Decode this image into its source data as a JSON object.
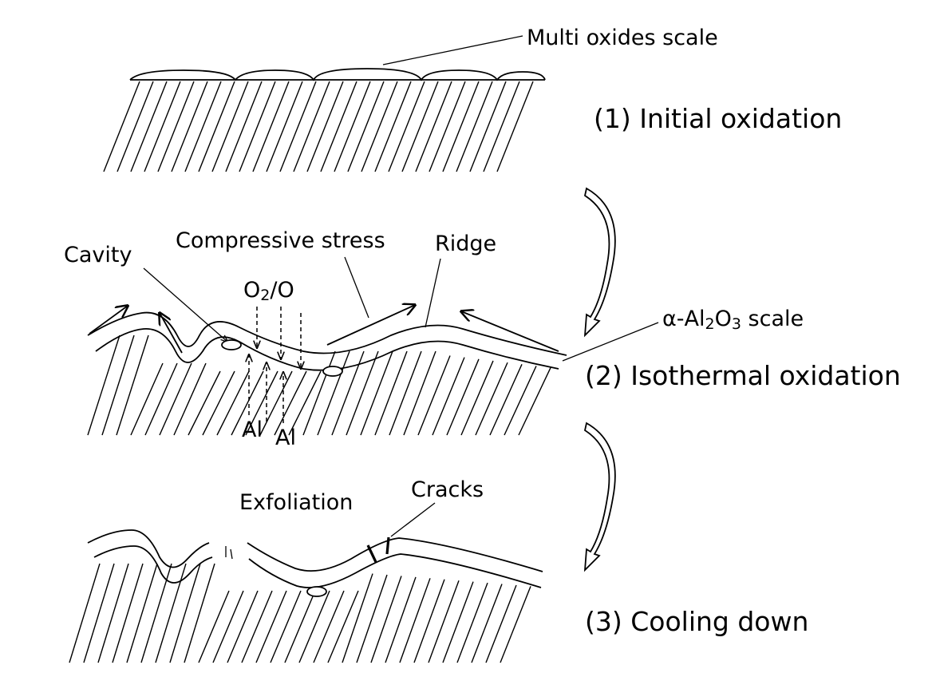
{
  "labels": {
    "multi_oxides": "Multi oxides scale",
    "stage1": "(1) Initial oxidation",
    "compressive": "Compressive stress",
    "ridge": "Ridge",
    "cavity": "Cavity",
    "o2o_main": "O",
    "o2o_sub": "2",
    "o2o_tail": "/O",
    "alpha_pre": "α-Al",
    "alpha_sub2": "2",
    "alpha_mid": "O",
    "alpha_sub3": "3",
    "alpha_post": " scale",
    "stage2": "(2) Isothermal oxidation",
    "al1": "Al",
    "al2": "Al",
    "exfoliation": "Exfoliation",
    "cracks": "Cracks",
    "stage3": "(3) Cooling down"
  }
}
